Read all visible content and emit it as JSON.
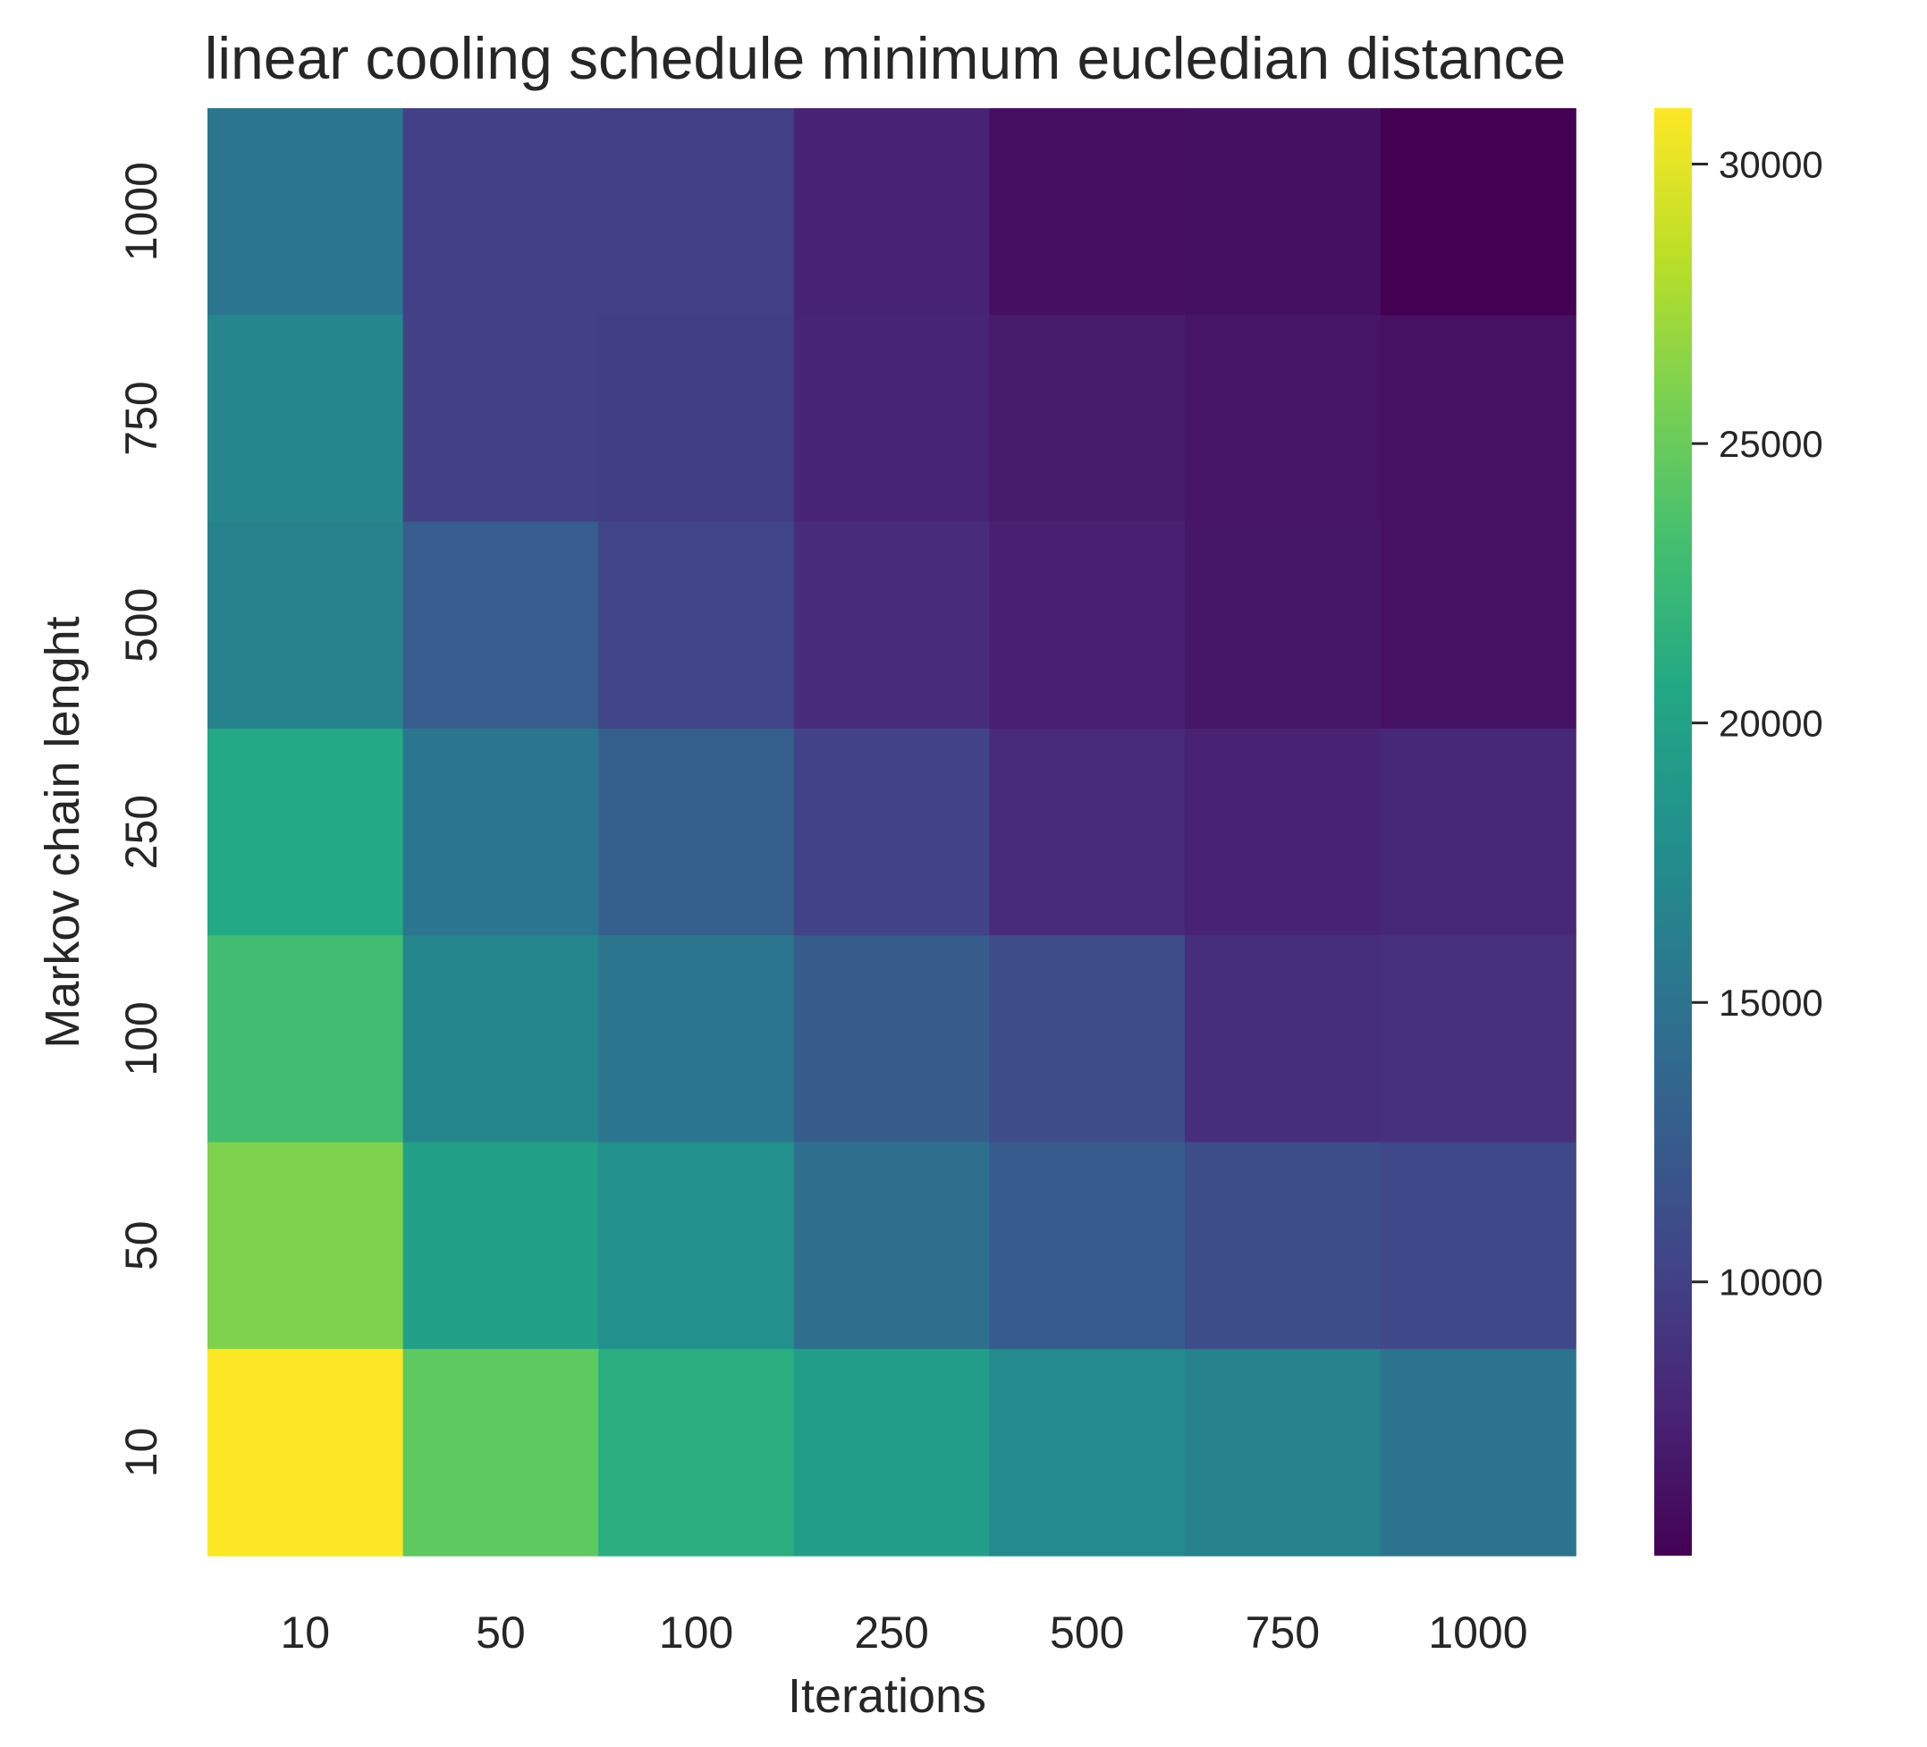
{
  "chart_data": {
    "type": "heatmap",
    "title": "linear cooling schedule minimum eucledian distance",
    "xlabel": "Iterations",
    "ylabel": "Markov chain lenght",
    "x_categories": [
      "10",
      "50",
      "100",
      "250",
      "500",
      "750",
      "1000"
    ],
    "y_categories_top_to_bottom": [
      "1000",
      "750",
      "500",
      "250",
      "100",
      "50",
      "10"
    ],
    "values_top_to_bottom": [
      [
        15300,
        10000,
        9900,
        7600,
        6100,
        6200,
        5100
      ],
      [
        17000,
        10000,
        9800,
        7700,
        7100,
        6600,
        6300
      ],
      [
        16500,
        12700,
        10400,
        8300,
        7400,
        6700,
        6300
      ],
      [
        20700,
        15300,
        12900,
        10200,
        8200,
        7600,
        8000
      ],
      [
        23000,
        16800,
        15300,
        12600,
        11000,
        8500,
        8600
      ],
      [
        26000,
        19600,
        17900,
        14500,
        12500,
        11100,
        10700
      ],
      [
        31000,
        24500,
        21300,
        19500,
        17300,
        16500,
        15000
      ]
    ],
    "colormap": "viridis",
    "colorbar": {
      "vmin": 5100,
      "vmax": 31000,
      "ticks": [
        10000,
        15000,
        20000,
        25000,
        30000
      ]
    },
    "grid": false,
    "legend": "colorbar-right"
  }
}
